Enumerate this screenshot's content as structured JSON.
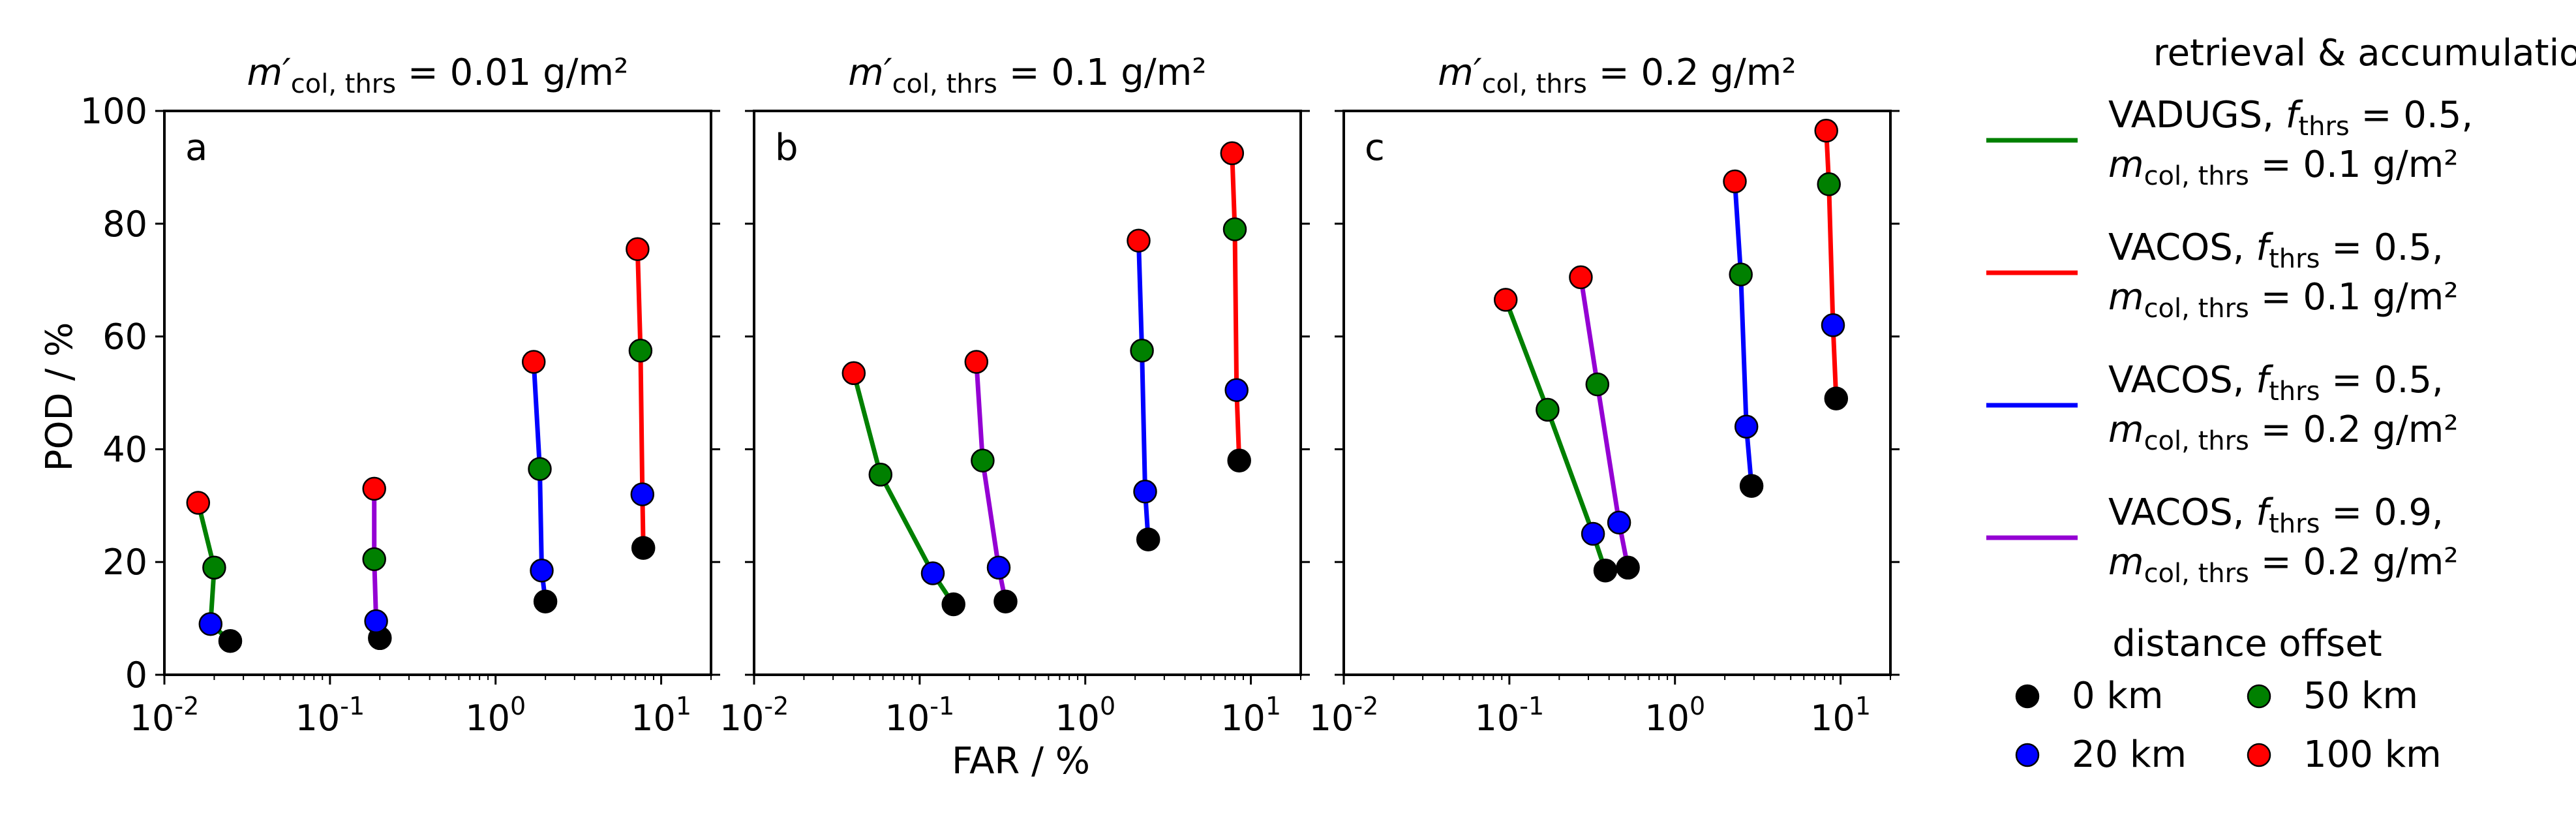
{
  "figure": {
    "xlabel": "FAR / %",
    "ylabel": "POD / %",
    "legend": {
      "rule_title": "retrieval & accumulation rule",
      "rules": [
        {
          "name": "VADUGS",
          "color": "#008000",
          "line1_prefix": "VADUGS, ",
          "line1_var": "f",
          "line1_sub": "thrs",
          "line1_val": " = 0.5,",
          "line2_var": "m",
          "line2_sub": "col, thrs",
          "line2_val": " = 0.1 g/m²"
        },
        {
          "name": "VACOS f0.5 m0.1",
          "color": "#ff0000",
          "line1_prefix": "VACOS, ",
          "line1_var": "f",
          "line1_sub": "thrs",
          "line1_val": " = 0.5,",
          "line2_var": "m",
          "line2_sub": "col, thrs",
          "line2_val": " = 0.1 g/m²"
        },
        {
          "name": "VACOS f0.5 m0.2",
          "color": "#0000ff",
          "line1_prefix": "VACOS, ",
          "line1_var": "f",
          "line1_sub": "thrs",
          "line1_val": " = 0.5,",
          "line2_var": "m",
          "line2_sub": "col, thrs",
          "line2_val": " = 0.2 g/m²"
        },
        {
          "name": "VACOS f0.9 m0.2",
          "color": "#9400d3",
          "line1_prefix": "VACOS, ",
          "line1_var": "f",
          "line1_sub": "thrs",
          "line1_val": " = 0.9,",
          "line2_var": "m",
          "line2_sub": "col, thrs",
          "line2_val": " = 0.2 g/m²"
        }
      ],
      "offset_title": "distance offset",
      "offsets": [
        {
          "label": "0 km",
          "color": "#000000"
        },
        {
          "label": "50 km",
          "color": "#008000"
        },
        {
          "label": "20 km",
          "color": "#0000ff"
        },
        {
          "label": "100 km",
          "color": "#ff0000"
        }
      ]
    }
  },
  "chart_data": [
    {
      "type": "scatter",
      "panel": "a",
      "title_var": "m′",
      "title_sub": "col, thrs",
      "title_val": " = 0.01 g/m²",
      "xscale": "log",
      "xlim": [
        0.01,
        20
      ],
      "ylim": [
        0,
        100
      ],
      "xticks": [
        {
          "exp": "-2"
        },
        {
          "exp": "-1"
        },
        {
          "exp": "0"
        },
        {
          "exp": "1"
        }
      ],
      "yticks": [
        "0",
        "20",
        "40",
        "60",
        "80",
        "100"
      ],
      "series": [
        {
          "rule": "VADUGS",
          "color": "#008000",
          "points": [
            {
              "offset": "0 km",
              "far": 0.025,
              "pod": 6
            },
            {
              "offset": "20 km",
              "far": 0.019,
              "pod": 9
            },
            {
              "offset": "50 km",
              "far": 0.02,
              "pod": 19
            },
            {
              "offset": "100 km",
              "far": 0.016,
              "pod": 30.5
            }
          ]
        },
        {
          "rule": "VACOS f0.9 m0.2",
          "color": "#9400d3",
          "points": [
            {
              "offset": "0 km",
              "far": 0.2,
              "pod": 6.5
            },
            {
              "offset": "20 km",
              "far": 0.19,
              "pod": 9.5
            },
            {
              "offset": "50 km",
              "far": 0.185,
              "pod": 20.5
            },
            {
              "offset": "100 km",
              "far": 0.185,
              "pod": 33
            }
          ]
        },
        {
          "rule": "VACOS f0.5 m0.2",
          "color": "#0000ff",
          "points": [
            {
              "offset": "0 km",
              "far": 2.0,
              "pod": 13
            },
            {
              "offset": "20 km",
              "far": 1.9,
              "pod": 18.5
            },
            {
              "offset": "50 km",
              "far": 1.85,
              "pod": 36.5
            },
            {
              "offset": "100 km",
              "far": 1.7,
              "pod": 55.5
            }
          ]
        },
        {
          "rule": "VACOS f0.5 m0.1",
          "color": "#ff0000",
          "points": [
            {
              "offset": "0 km",
              "far": 7.8,
              "pod": 22.5
            },
            {
              "offset": "20 km",
              "far": 7.7,
              "pod": 32
            },
            {
              "offset": "50 km",
              "far": 7.5,
              "pod": 57.5
            },
            {
              "offset": "100 km",
              "far": 7.2,
              "pod": 75.5
            }
          ]
        }
      ]
    },
    {
      "type": "scatter",
      "panel": "b",
      "title_var": "m′",
      "title_sub": "col, thrs",
      "title_val": " = 0.1 g/m²",
      "xscale": "log",
      "xlim": [
        0.01,
        20
      ],
      "ylim": [
        0,
        100
      ],
      "xticks": [
        {
          "exp": "-2"
        },
        {
          "exp": "-1"
        },
        {
          "exp": "0"
        },
        {
          "exp": "1"
        }
      ],
      "yticks": [
        "0",
        "20",
        "40",
        "60",
        "80",
        "100"
      ],
      "series": [
        {
          "rule": "VADUGS",
          "color": "#008000",
          "points": [
            {
              "offset": "0 km",
              "far": 0.16,
              "pod": 12.5
            },
            {
              "offset": "20 km",
              "far": 0.12,
              "pod": 18
            },
            {
              "offset": "50 km",
              "far": 0.058,
              "pod": 35.5
            },
            {
              "offset": "100 km",
              "far": 0.04,
              "pod": 53.5
            }
          ]
        },
        {
          "rule": "VACOS f0.9 m0.2",
          "color": "#9400d3",
          "points": [
            {
              "offset": "0 km",
              "far": 0.33,
              "pod": 13
            },
            {
              "offset": "20 km",
              "far": 0.3,
              "pod": 19
            },
            {
              "offset": "50 km",
              "far": 0.24,
              "pod": 38
            },
            {
              "offset": "100 km",
              "far": 0.22,
              "pod": 55.5
            }
          ]
        },
        {
          "rule": "VACOS f0.5 m0.2",
          "color": "#0000ff",
          "points": [
            {
              "offset": "0 km",
              "far": 2.4,
              "pod": 24
            },
            {
              "offset": "20 km",
              "far": 2.3,
              "pod": 32.5
            },
            {
              "offset": "50 km",
              "far": 2.2,
              "pod": 57.5
            },
            {
              "offset": "100 km",
              "far": 2.1,
              "pod": 77
            }
          ]
        },
        {
          "rule": "VACOS f0.5 m0.1",
          "color": "#ff0000",
          "points": [
            {
              "offset": "0 km",
              "far": 8.5,
              "pod": 38
            },
            {
              "offset": "20 km",
              "far": 8.2,
              "pod": 50.5
            },
            {
              "offset": "50 km",
              "far": 8.0,
              "pod": 79
            },
            {
              "offset": "100 km",
              "far": 7.7,
              "pod": 92.5
            }
          ]
        }
      ]
    },
    {
      "type": "scatter",
      "panel": "c",
      "title_var": "m′",
      "title_sub": "col, thrs",
      "title_val": " = 0.2 g/m²",
      "xscale": "log",
      "xlim": [
        0.01,
        20
      ],
      "ylim": [
        0,
        100
      ],
      "xticks": [
        {
          "exp": "-2"
        },
        {
          "exp": "-1"
        },
        {
          "exp": "0"
        },
        {
          "exp": "1"
        }
      ],
      "yticks": [
        "0",
        "20",
        "40",
        "60",
        "80",
        "100"
      ],
      "series": [
        {
          "rule": "VADUGS",
          "color": "#008000",
          "points": [
            {
              "offset": "0 km",
              "far": 0.38,
              "pod": 18.5
            },
            {
              "offset": "20 km",
              "far": 0.32,
              "pod": 25
            },
            {
              "offset": "50 km",
              "far": 0.17,
              "pod": 47
            },
            {
              "offset": "100 km",
              "far": 0.095,
              "pod": 66.5
            }
          ]
        },
        {
          "rule": "VACOS f0.9 m0.2",
          "color": "#9400d3",
          "points": [
            {
              "offset": "0 km",
              "far": 0.52,
              "pod": 19
            },
            {
              "offset": "20 km",
              "far": 0.46,
              "pod": 27
            },
            {
              "offset": "50 km",
              "far": 0.34,
              "pod": 51.5
            },
            {
              "offset": "100 km",
              "far": 0.27,
              "pod": 70.5
            }
          ]
        },
        {
          "rule": "VACOS f0.5 m0.2",
          "color": "#0000ff",
          "points": [
            {
              "offset": "0 km",
              "far": 2.9,
              "pod": 33.5
            },
            {
              "offset": "20 km",
              "far": 2.7,
              "pod": 44
            },
            {
              "offset": "50 km",
              "far": 2.5,
              "pod": 71
            },
            {
              "offset": "100 km",
              "far": 2.3,
              "pod": 87.5
            }
          ]
        },
        {
          "rule": "VACOS f0.5 m0.1",
          "color": "#ff0000",
          "points": [
            {
              "offset": "0 km",
              "far": 9.4,
              "pod": 49
            },
            {
              "offset": "20 km",
              "far": 9.0,
              "pod": 62
            },
            {
              "offset": "50 km",
              "far": 8.5,
              "pod": 87
            },
            {
              "offset": "100 km",
              "far": 8.2,
              "pod": 96.5
            }
          ]
        }
      ]
    }
  ]
}
